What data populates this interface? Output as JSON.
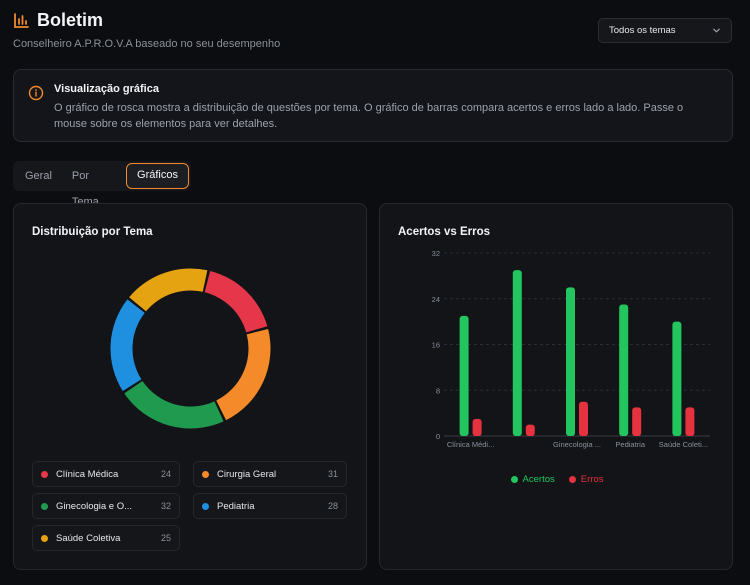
{
  "header": {
    "title": "Boletim",
    "subtitle": "Conselheiro A.P.R.O.V.A baseado no seu desempenho",
    "accent": "#f08a2b"
  },
  "filter": {
    "selected": "Todos os temas"
  },
  "info": {
    "title": "Visualização gráfica",
    "text": "O gráfico de rosca mostra a distribuição de questões por tema. O gráfico de barras compara acertos e erros lado a lado. Passe o mouse sobre os elementos para ver detalhes."
  },
  "tabs": [
    {
      "label": "Geral"
    },
    {
      "label": "Por Tema"
    },
    {
      "label": "Gráficos"
    }
  ],
  "donut_card": {
    "title": "Distribuição por Tema"
  },
  "bar_card": {
    "title": "Acertos vs Erros"
  },
  "chart_data": [
    {
      "type": "pie",
      "title": "Distribuição por Tema",
      "categories": [
        "Clínica Médica",
        "Cirurgia Geral",
        "Ginecologia e O...",
        "Pediatria",
        "Saúde Coletiva"
      ],
      "values": [
        24,
        31,
        32,
        28,
        25
      ],
      "colors": [
        "#e5364a",
        "#f58a2a",
        "#1f9a4f",
        "#1f8fe0",
        "#e5a311"
      ]
    },
    {
      "type": "bar",
      "title": "Acertos vs Erros",
      "categories": [
        "Clínica Médi...",
        "Cirurgia Geral",
        "Ginecologia ...",
        "Pediatria",
        "Saúde Coleti..."
      ],
      "tick_labels": [
        "Clínica Médi...",
        "",
        "Ginecologia ...",
        "Pediatria",
        "Saúde Coleti..."
      ],
      "yticks": [
        "32",
        "24",
        "16",
        "8",
        "0"
      ],
      "ylim": [
        0,
        32
      ],
      "series": [
        {
          "name": "Acertos",
          "values": [
            21,
            29,
            26,
            23,
            20
          ],
          "color": "#22c55e"
        },
        {
          "name": "Erros",
          "values": [
            3,
            2,
            6,
            5,
            5
          ],
          "color": "#e5323e"
        }
      ],
      "legend": "bottom"
    }
  ]
}
